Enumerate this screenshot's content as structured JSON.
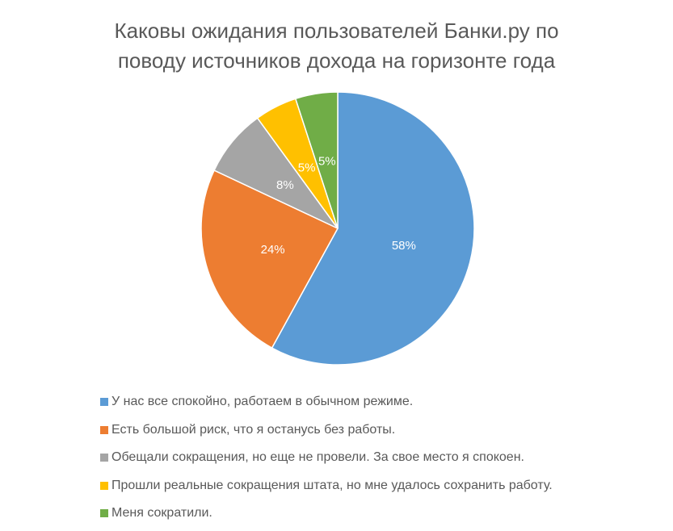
{
  "chart_data": {
    "type": "pie",
    "title_lines": [
      "Каковы ожидания пользователей Банки.ру по",
      "поводу источников дохода на горизонте года"
    ],
    "categories": [
      "У нас все спокойно, работаем в обычном режиме.",
      "Есть большой риск, что я останусь без работы.",
      "Обещали сокращения, но еще не провели. За свое место я спокоен.",
      "Прошли реальные сокращения штата, но мне удалось сохранить работу.",
      "Меня сократили."
    ],
    "values": [
      58,
      24,
      8,
      5,
      5
    ],
    "data_labels": [
      "58%",
      "24%",
      "8%",
      "5%",
      "5%"
    ],
    "colors": [
      "#5B9BD5",
      "#ED7D31",
      "#A5A5A5",
      "#FFC000",
      "#70AD47"
    ],
    "start_angle": "top, clockwise",
    "legend_position": "bottom"
  }
}
